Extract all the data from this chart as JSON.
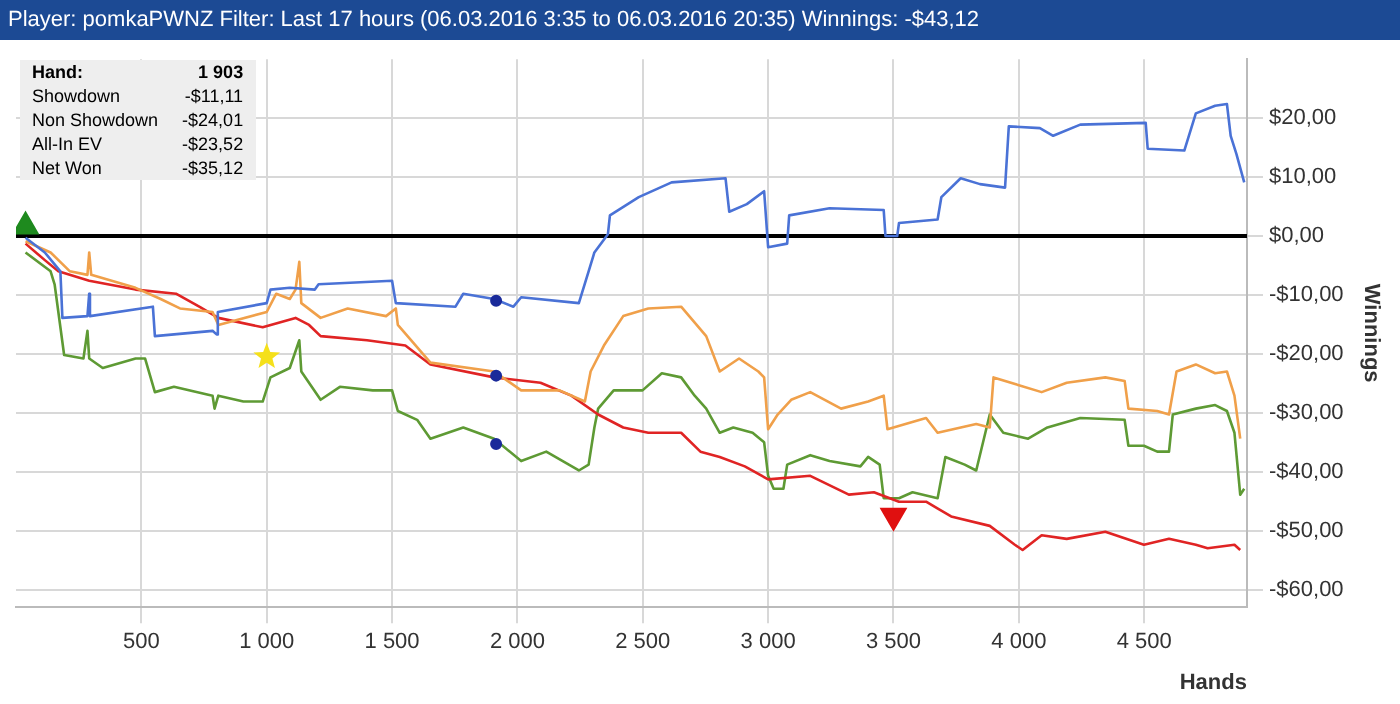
{
  "chart_data": {
    "type": "line",
    "title": "Player: pomkaPWNZ Filter: Last 17 hours (06.03.2016 3:35 to 06.03.2016 20:35) Winnings: -$43,12",
    "xlabel": "Hands",
    "ylabel": "Winnings",
    "annotations": [
      "Hand:",
      "1 903",
      "Showdown",
      "-$11,11",
      "Non Showdown",
      "-$24,01",
      "All-In EV",
      "-$23,52",
      "Net Won",
      "-$35,12"
    ],
    "xlim": [
      0,
      4910
    ],
    "ylim": [
      -63,
      30
    ],
    "xticks": [
      500,
      {
        "value": 1000,
        "label": "1 000"
      },
      {
        "value": 1500,
        "label": "1 500"
      },
      {
        "value": 2000,
        "label": "2 000"
      },
      {
        "value": 2500,
        "label": "2 500"
      },
      {
        "value": 3000,
        "label": "3 000"
      },
      {
        "value": 3500,
        "label": "3 500"
      },
      {
        "value": 4000,
        "label": "4 000"
      },
      {
        "value": 4500,
        "label": "4 500"
      }
    ],
    "yticks": [
      {
        "value": -60,
        "label": "-$60,00"
      },
      {
        "value": -50,
        "label": "-$50,00"
      },
      {
        "value": -40,
        "label": "-$40,00"
      },
      {
        "value": -30,
        "label": "-$30,00"
      },
      {
        "value": -20,
        "label": "-$20,00"
      },
      {
        "value": -10,
        "label": "-$10,00"
      },
      {
        "value": 0,
        "label": "$0,00"
      },
      {
        "value": 10,
        "label": "$10,00"
      },
      {
        "value": 20,
        "label": "$20,00"
      }
    ],
    "grid": true,
    "legend": false,
    "marker": "none",
    "ref_lines": [
      {
        "axis": "y",
        "value": 0,
        "color": "#000000"
      }
    ],
    "series": [
      {
        "color": "#4a72d6",
        "x": [
          38,
          115,
          177,
          185,
          285,
          292,
          295,
          546,
          554,
          784,
          800,
          805,
          1000,
          1015,
          1092,
          1192,
          1207,
          1500,
          1515,
          1753,
          1784,
          1907,
          1984,
          2015,
          2245,
          2284,
          2307,
          2361,
          2369,
          2484,
          2615,
          2830,
          2845,
          2915,
          2984,
          3000,
          3076,
          3084,
          3245,
          3461,
          3468,
          3515,
          3522,
          3676,
          3691,
          3768,
          3845,
          3945,
          3960,
          4084,
          4137,
          4245,
          4506,
          4514,
          4660,
          4706,
          4783,
          4830,
          4845,
          4868,
          4899
        ],
        "values": [
          -0.3,
          -2.8,
          -6.0,
          -13.9,
          -13.6,
          -9.8,
          -13.6,
          -12.0,
          -17.0,
          -16.1,
          -16.7,
          -12.9,
          -11.4,
          -9.1,
          -8.8,
          -9.1,
          -8.2,
          -7.6,
          -11.4,
          -12.0,
          -9.8,
          -10.7,
          -12.0,
          -10.4,
          -11.4,
          -6.0,
          -2.8,
          0.3,
          3.5,
          6.6,
          9.1,
          9.8,
          4.1,
          5.4,
          7.6,
          -1.9,
          -1.3,
          3.5,
          4.7,
          4.4,
          0,
          0,
          2.2,
          2.8,
          6.6,
          9.8,
          8.8,
          8.2,
          18.6,
          18.3,
          17.0,
          18.9,
          19.2,
          14.8,
          14.5,
          20.8,
          22.1,
          22.4,
          17.0,
          13.9,
          9.1
        ]
      },
      {
        "color": "#f0a04a",
        "x": [
          38,
          138,
          215,
          285,
          292,
          300,
          477,
          577,
          654,
          784,
          807,
          1000,
          1038,
          1092,
          1115,
          1130,
          1138,
          1215,
          1323,
          1476,
          1515,
          1523,
          1653,
          1907,
          2015,
          2168,
          2269,
          2292,
          2345,
          2422,
          2522,
          2653,
          2753,
          2807,
          2884,
          2961,
          2984,
          3000,
          3038,
          3092,
          3168,
          3291,
          3399,
          3461,
          3476,
          3630,
          3676,
          3830,
          3884,
          3899,
          4091,
          4191,
          4345,
          4422,
          4437,
          4552,
          4599,
          4629,
          4706,
          4783,
          4830,
          4860,
          4883
        ],
        "values": [
          -0.9,
          -2.8,
          -6.0,
          -6.6,
          -2.8,
          -6.6,
          -8.8,
          -10.7,
          -12.3,
          -12.9,
          -15.1,
          -12.9,
          -9.8,
          -10.7,
          -9.1,
          -4.4,
          -11.4,
          -13.9,
          -12.3,
          -13.6,
          -12.3,
          -15.1,
          -21.5,
          -23.0,
          -26.2,
          -26.2,
          -28.1,
          -23.0,
          -18.6,
          -13.6,
          -12.3,
          -12.0,
          -17.0,
          -23.0,
          -20.8,
          -23.0,
          -24.0,
          -32.8,
          -30.3,
          -27.8,
          -26.5,
          -29.3,
          -28.1,
          -27.1,
          -32.8,
          -30.9,
          -33.4,
          -31.9,
          -32.5,
          -24.0,
          -26.5,
          -24.9,
          -24.0,
          -24.6,
          -29.3,
          -29.7,
          -30.3,
          -23.0,
          -21.8,
          -23.3,
          -23.0,
          -27.1,
          -34.4
        ]
      },
      {
        "color": "#e02424",
        "x": [
          38,
          115,
          169,
          292,
          477,
          638,
          731,
          807,
          984,
          1115,
          1169,
          1215,
          1400,
          1553,
          1653,
          1907,
          2092,
          2215,
          2322,
          2422,
          2522,
          2653,
          2730,
          2807,
          2907,
          3000,
          3168,
          3322,
          3422,
          3522,
          3630,
          3730,
          3884,
          3984,
          4015,
          4091,
          4191,
          4345,
          4499,
          4599,
          4706,
          4753,
          4860,
          4883
        ],
        "values": [
          -1.3,
          -4.1,
          -6.0,
          -7.6,
          -9.1,
          -9.8,
          -12.0,
          -13.9,
          -15.5,
          -13.9,
          -15.1,
          -17.0,
          -17.7,
          -18.6,
          -21.8,
          -24.0,
          -24.9,
          -27.1,
          -30.3,
          -32.5,
          -33.4,
          -33.4,
          -36.6,
          -37.5,
          -39.1,
          -41.3,
          -40.7,
          -43.9,
          -43.5,
          -45.1,
          -45.1,
          -47.6,
          -49.2,
          -52.4,
          -53.3,
          -50.8,
          -51.4,
          -50.2,
          -52.4,
          -51.4,
          -52.4,
          -53.0,
          -52.4,
          -53.3
        ]
      },
      {
        "color": "#5e9a34",
        "x": [
          38,
          138,
          154,
          192,
          269,
          285,
          292,
          346,
          477,
          515,
          554,
          630,
          784,
          792,
          807,
          907,
          984,
          1015,
          1092,
          1130,
          1138,
          1215,
          1292,
          1423,
          1500,
          1523,
          1600,
          1653,
          1784,
          1907,
          2015,
          2115,
          2245,
          2284,
          2307,
          2322,
          2384,
          2499,
          2576,
          2653,
          2707,
          2753,
          2807,
          2861,
          2938,
          2984,
          3000,
          3022,
          3061,
          3076,
          3168,
          3245,
          3368,
          3399,
          3445,
          3461,
          3522,
          3576,
          3676,
          3707,
          3784,
          3830,
          3884,
          3938,
          4037,
          4114,
          4245,
          4422,
          4437,
          4499,
          4552,
          4599,
          4614,
          4706,
          4783,
          4830,
          4860,
          4883,
          4899
        ],
        "values": [
          -2.8,
          -6.0,
          -8.2,
          -20.2,
          -20.8,
          -16.1,
          -20.8,
          -22.4,
          -20.8,
          -20.8,
          -26.5,
          -25.6,
          -27.1,
          -29.3,
          -27.1,
          -28.1,
          -28.1,
          -24.0,
          -22.4,
          -17.7,
          -23.0,
          -27.8,
          -25.6,
          -26.2,
          -26.2,
          -29.7,
          -31.2,
          -34.4,
          -32.5,
          -34.4,
          -38.2,
          -36.6,
          -39.8,
          -38.8,
          -32.5,
          -29.3,
          -26.2,
          -26.2,
          -23.3,
          -24.0,
          -27.1,
          -29.3,
          -33.4,
          -32.5,
          -33.4,
          -35.0,
          -40.7,
          -42.9,
          -42.9,
          -38.8,
          -37.2,
          -38.2,
          -39.1,
          -37.5,
          -38.8,
          -44.5,
          -44.5,
          -43.5,
          -44.5,
          -37.5,
          -38.8,
          -39.8,
          -30.3,
          -33.4,
          -34.4,
          -32.5,
          -30.9,
          -31.2,
          -35.6,
          -35.6,
          -36.6,
          -36.6,
          -30.3,
          -29.3,
          -28.7,
          -29.7,
          -33.4,
          -43.9,
          -42.9
        ]
      },
      {
        "type": "scatter",
        "marker": "triangle",
        "color": "#1e8a1e",
        "x": [
          38
        ],
        "values": [
          1.6
        ]
      },
      {
        "type": "scatter",
        "marker": "star",
        "color": "#f5e01a",
        "x": [
          1000
        ],
        "values": [
          -20.5
        ]
      },
      {
        "type": "scatter",
        "marker": "triangle_down",
        "color": "#e01010",
        "x": [
          3500
        ],
        "values": [
          -47.5
        ]
      },
      {
        "type": "scatter",
        "marker": "circle",
        "color": "#1a2a9a",
        "x": [
          1915,
          1915,
          1915
        ],
        "values": [
          -11.0,
          -23.7,
          -35.3
        ]
      }
    ]
  }
}
